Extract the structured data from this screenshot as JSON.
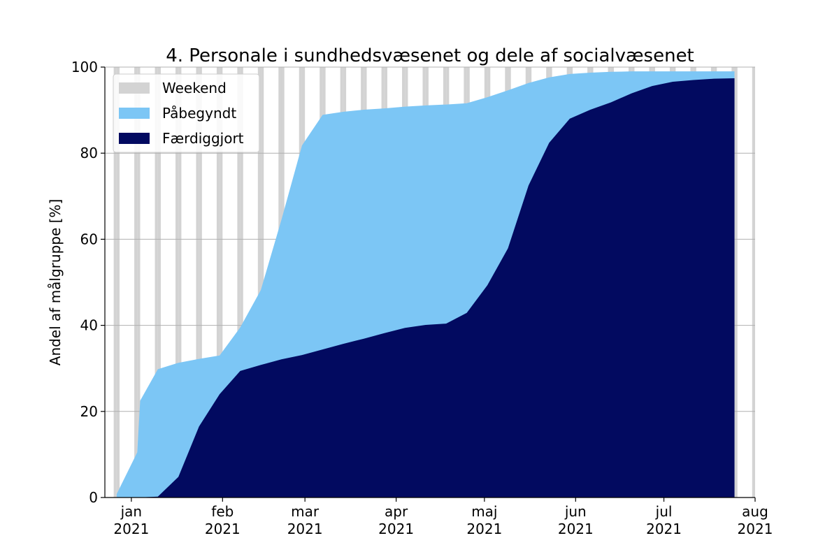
{
  "chart_data": {
    "type": "area",
    "title": "4. Personale i sundhedsvæsenet og dele af socialvæsenet",
    "xlabel": "",
    "ylabel": "Andel af målgruppe [%]",
    "ylim": [
      0,
      100
    ],
    "xlim": [
      "2020-12-23",
      "2021-08-01"
    ],
    "y_ticks": [
      0,
      20,
      40,
      60,
      80,
      100
    ],
    "x_ticks": [
      {
        "date": "2021-01-01",
        "month": "jan",
        "year": "2021"
      },
      {
        "date": "2021-02-01",
        "month": "feb",
        "year": "2021"
      },
      {
        "date": "2021-03-01",
        "month": "mar",
        "year": "2021"
      },
      {
        "date": "2021-04-01",
        "month": "apr",
        "year": "2021"
      },
      {
        "date": "2021-05-01",
        "month": "maj",
        "year": "2021"
      },
      {
        "date": "2021-06-01",
        "month": "jun",
        "year": "2021"
      },
      {
        "date": "2021-07-01",
        "month": "jul",
        "year": "2021"
      },
      {
        "date": "2021-08-01",
        "month": "aug",
        "year": "2021"
      }
    ],
    "grid": "y",
    "legend_position": "top-left",
    "colors": {
      "weekend": "#d3d3d3",
      "started": "#7cc6f5",
      "completed": "#020a60",
      "grid": "#b0b0b0"
    },
    "weekend_days": [
      "2020-12-26",
      "2020-12-27",
      "2021-01-02",
      "2021-01-03",
      "2021-01-09",
      "2021-01-10",
      "2021-01-16",
      "2021-01-17",
      "2021-01-23",
      "2021-01-24",
      "2021-01-30",
      "2021-01-31",
      "2021-02-06",
      "2021-02-07",
      "2021-02-13",
      "2021-02-14",
      "2021-02-20",
      "2021-02-21",
      "2021-02-27",
      "2021-02-28",
      "2021-03-06",
      "2021-03-07",
      "2021-03-13",
      "2021-03-14",
      "2021-03-20",
      "2021-03-21",
      "2021-03-27",
      "2021-03-28",
      "2021-04-03",
      "2021-04-04",
      "2021-04-10",
      "2021-04-11",
      "2021-04-17",
      "2021-04-18",
      "2021-04-24",
      "2021-04-25",
      "2021-05-01",
      "2021-05-02",
      "2021-05-08",
      "2021-05-09",
      "2021-05-15",
      "2021-05-16",
      "2021-05-22",
      "2021-05-23",
      "2021-05-29",
      "2021-05-30",
      "2021-06-05",
      "2021-06-06",
      "2021-06-12",
      "2021-06-13",
      "2021-06-19",
      "2021-06-20",
      "2021-06-26",
      "2021-06-27",
      "2021-07-03",
      "2021-07-04",
      "2021-07-10",
      "2021-07-11",
      "2021-07-17",
      "2021-07-18",
      "2021-07-24",
      "2021-07-25",
      "2021-07-31",
      "2021-08-01"
    ],
    "series": [
      {
        "name": "Påbegyndt",
        "points": [
          [
            "2020-12-27",
            0.8
          ],
          [
            "2021-01-03",
            10.5
          ],
          [
            "2021-01-04",
            22.5
          ],
          [
            "2021-01-10",
            29.8
          ],
          [
            "2021-01-17",
            31.3
          ],
          [
            "2021-01-24",
            32.2
          ],
          [
            "2021-01-31",
            33.0
          ],
          [
            "2021-02-07",
            39.5
          ],
          [
            "2021-02-14",
            48.2
          ],
          [
            "2021-02-21",
            64.5
          ],
          [
            "2021-02-28",
            81.8
          ],
          [
            "2021-03-07",
            88.9
          ],
          [
            "2021-03-14",
            89.6
          ],
          [
            "2021-03-21",
            90.1
          ],
          [
            "2021-03-28",
            90.4
          ],
          [
            "2021-04-04",
            90.8
          ],
          [
            "2021-04-11",
            91.1
          ],
          [
            "2021-04-18",
            91.3
          ],
          [
            "2021-04-25",
            91.6
          ],
          [
            "2021-05-02",
            93.0
          ],
          [
            "2021-05-09",
            94.6
          ],
          [
            "2021-05-16",
            96.3
          ],
          [
            "2021-05-23",
            97.6
          ],
          [
            "2021-05-30",
            98.4
          ],
          [
            "2021-06-06",
            98.7
          ],
          [
            "2021-06-13",
            98.9
          ],
          [
            "2021-06-20",
            99.0
          ],
          [
            "2021-06-27",
            99.0
          ],
          [
            "2021-07-04",
            99.0
          ],
          [
            "2021-07-11",
            99.0
          ],
          [
            "2021-07-18",
            99.0
          ],
          [
            "2021-07-25",
            99.0
          ]
        ]
      },
      {
        "name": "Færdiggjort",
        "points": [
          [
            "2020-12-27",
            0.0
          ],
          [
            "2021-01-03",
            0.0
          ],
          [
            "2021-01-10",
            0.2
          ],
          [
            "2021-01-17",
            4.8
          ],
          [
            "2021-01-24",
            16.5
          ],
          [
            "2021-01-31",
            24.0
          ],
          [
            "2021-02-07",
            29.4
          ],
          [
            "2021-02-14",
            30.8
          ],
          [
            "2021-02-21",
            32.1
          ],
          [
            "2021-02-28",
            33.1
          ],
          [
            "2021-03-07",
            34.4
          ],
          [
            "2021-03-14",
            35.7
          ],
          [
            "2021-03-21",
            36.9
          ],
          [
            "2021-03-28",
            38.2
          ],
          [
            "2021-04-04",
            39.4
          ],
          [
            "2021-04-11",
            40.1
          ],
          [
            "2021-04-18",
            40.4
          ],
          [
            "2021-04-25",
            42.9
          ],
          [
            "2021-05-02",
            49.3
          ],
          [
            "2021-05-09",
            57.9
          ],
          [
            "2021-05-16",
            72.5
          ],
          [
            "2021-05-23",
            82.4
          ],
          [
            "2021-05-30",
            88.0
          ],
          [
            "2021-06-06",
            90.1
          ],
          [
            "2021-06-13",
            91.8
          ],
          [
            "2021-06-20",
            93.9
          ],
          [
            "2021-06-27",
            95.6
          ],
          [
            "2021-07-04",
            96.6
          ],
          [
            "2021-07-11",
            97.0
          ],
          [
            "2021-07-18",
            97.3
          ],
          [
            "2021-07-25",
            97.4
          ]
        ]
      }
    ],
    "legend": [
      {
        "label": "Weekend",
        "color_key": "weekend"
      },
      {
        "label": "Påbegyndt",
        "color_key": "started"
      },
      {
        "label": "Færdiggjort",
        "color_key": "completed"
      }
    ]
  }
}
